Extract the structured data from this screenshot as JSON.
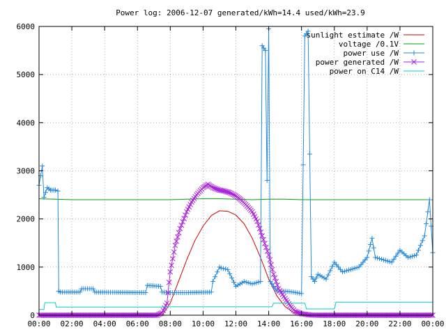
{
  "chart_data": {
    "type": "line",
    "title": "Power log: 2006-12-07 generated/kWh=14.4 used/kWh=23.9",
    "xlabel": "",
    "ylabel": "",
    "xlim": [
      0,
      24
    ],
    "ylim": [
      0,
      6000
    ],
    "x_ticks": [
      0,
      2,
      4,
      6,
      8,
      10,
      12,
      14,
      16,
      18,
      20,
      22,
      24
    ],
    "x_tick_labels": [
      "00:00",
      "02:00",
      "04:00",
      "06:00",
      "08:00",
      "10:00",
      "12:00",
      "14:00",
      "16:00",
      "18:00",
      "20:00",
      "22:00",
      "00:00"
    ],
    "y_ticks": [
      0,
      1000,
      2000,
      3000,
      4000,
      5000,
      6000
    ],
    "y_tick_labels": [
      "0",
      "1000",
      "2000",
      "3000",
      "4000",
      "5000",
      "6000"
    ],
    "grid": true,
    "legend_position": "top-right",
    "series": [
      {
        "name": "sunlight estimate /W",
        "color": "#cc0000",
        "marker": "none",
        "x": [
          7.5,
          8.0,
          8.5,
          9.0,
          9.5,
          10.0,
          10.5,
          11.0,
          11.5,
          12.0,
          12.5,
          13.0,
          13.5,
          14.0,
          14.5,
          15.0,
          15.5,
          16.0,
          16.3
        ],
        "y": [
          0,
          250,
          700,
          1150,
          1550,
          1850,
          2070,
          2170,
          2160,
          2080,
          1900,
          1600,
          1200,
          750,
          400,
          180,
          60,
          10,
          0
        ]
      },
      {
        "name": "voltage /0.1V",
        "color": "#00a000",
        "marker": "none",
        "x": [
          0,
          1,
          2,
          3,
          4,
          5,
          6,
          7,
          8,
          9,
          10,
          11,
          12,
          13,
          14,
          15,
          16,
          17,
          18,
          19,
          20,
          21,
          22,
          23,
          24
        ],
        "y": [
          2420,
          2410,
          2400,
          2400,
          2400,
          2400,
          2400,
          2400,
          2400,
          2410,
          2420,
          2420,
          2410,
          2400,
          2410,
          2410,
          2400,
          2400,
          2400,
          2400,
          2400,
          2400,
          2400,
          2400,
          2400
        ]
      },
      {
        "name": "power use /W",
        "color": "#2288dd",
        "marker": "plus",
        "x": [
          0,
          0.2,
          0.3,
          0.5,
          0.7,
          1.0,
          1.15,
          1.2,
          1.3,
          2.5,
          2.6,
          3.3,
          3.4,
          6.5,
          6.6,
          7.4,
          7.5,
          8.0,
          9.0,
          10.5,
          10.6,
          11.0,
          11.1,
          11.5,
          12.0,
          12.5,
          13.0,
          13.5,
          13.6,
          13.8,
          13.9,
          14.0,
          14.1,
          14.2,
          14.5,
          15.0,
          15.5,
          16.0,
          16.2,
          16.4,
          16.6,
          16.8,
          17.0,
          17.5,
          18.0,
          18.5,
          19.0,
          19.5,
          20.0,
          20.3,
          20.5,
          21.0,
          21.5,
          22.0,
          22.5,
          23.0,
          23.5,
          23.8,
          24.0
        ],
        "y": [
          2700,
          3100,
          2450,
          2650,
          2600,
          2600,
          2580,
          500,
          480,
          480,
          550,
          550,
          480,
          470,
          620,
          600,
          480,
          470,
          470,
          480,
          700,
          1000,
          980,
          950,
          600,
          700,
          650,
          700,
          5600,
          5500,
          2800,
          5950,
          700,
          650,
          500,
          500,
          480,
          450,
          5800,
          5900,
          800,
          700,
          850,
          750,
          1100,
          900,
          950,
          1000,
          1200,
          1600,
          1200,
          1150,
          1100,
          1350,
          1200,
          1250,
          1650,
          2400,
          1300
        ]
      },
      {
        "name": "power generated /W",
        "color": "#aa22dd",
        "marker": "cross",
        "x": [
          0,
          7.2,
          7.5,
          7.8,
          8.0,
          8.3,
          8.6,
          9.0,
          9.3,
          9.6,
          10.0,
          10.3,
          10.6,
          11.0,
          11.3,
          11.6,
          12.0,
          12.3,
          12.6,
          13.0,
          13.3,
          13.6,
          14.0,
          14.3,
          14.6,
          15.0,
          15.3,
          15.6,
          16.0,
          16.5,
          17.0,
          24.0
        ],
        "y": [
          0,
          0,
          50,
          250,
          900,
          1450,
          1800,
          2150,
          2350,
          2500,
          2650,
          2720,
          2650,
          2600,
          2580,
          2550,
          2480,
          2400,
          2300,
          2150,
          1950,
          1650,
          1250,
          850,
          550,
          350,
          200,
          80,
          30,
          5,
          0,
          0
        ]
      },
      {
        "name": "power on C14 /W",
        "color": "#00cccc",
        "marker": "none",
        "x": [
          0,
          0.3,
          0.35,
          1.0,
          1.05,
          7.5,
          7.6,
          14.2,
          14.3,
          16.2,
          16.3,
          18.0,
          18.1,
          24.0
        ],
        "y": [
          120,
          120,
          260,
          260,
          170,
          170,
          175,
          175,
          250,
          250,
          130,
          130,
          270,
          270
        ]
      }
    ]
  }
}
